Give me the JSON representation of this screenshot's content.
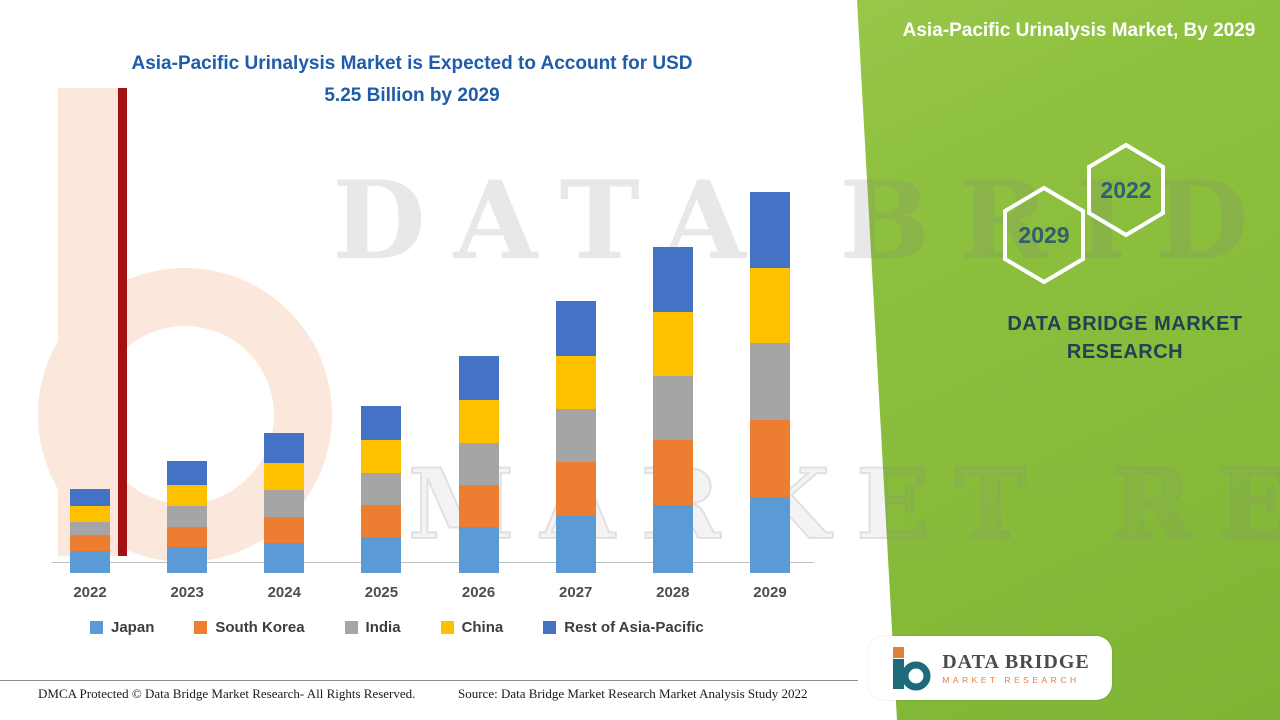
{
  "header": {
    "title_line1": "Asia-Pacific Urinalysis Market is Expected to Account for USD",
    "title_line2": "5.25 Billion by 2029"
  },
  "side_panel": {
    "title": "Asia-Pacific Urinalysis Market, By 2029",
    "hex_front_label": "2029",
    "hex_back_label": "2022",
    "brand_line1": "DATA BRIDGE MARKET",
    "brand_line2": "RESEARCH"
  },
  "watermark": {
    "line1": "DATA BRIDGE",
    "line2": "MARKET RESEARCH"
  },
  "logo_card": {
    "brand": "DATA BRIDGE",
    "sub": "MARKET RESEARCH"
  },
  "footer": {
    "left": "DMCA Protected © Data Bridge Market Research- All Rights Reserved.",
    "source": "Source: Data Bridge Market Research Market Analysis Study 2022"
  },
  "colors": {
    "title_blue": "#1f5ca9",
    "panel_green": "#8fc140",
    "japan": "#5B9BD5",
    "south_korea": "#ED7D31",
    "india": "#A5A5A5",
    "china": "#FFC000",
    "rest_of_asia_pacific": "#4472C4"
  },
  "chart_data": {
    "type": "bar",
    "stacked": true,
    "title": "Asia-Pacific Urinalysis Market is Expected to Account for USD 5.25 Billion by 2029",
    "xlabel": "",
    "ylabel": "",
    "y_axis_visible": false,
    "grid": false,
    "legend_position": "bottom",
    "units": "USD Billion",
    "categories": [
      "2022",
      "2023",
      "2024",
      "2025",
      "2026",
      "2027",
      "2028",
      "2029"
    ],
    "series": [
      {
        "name": "Japan",
        "color": "#5B9BD5",
        "values": [
          0.3,
          0.36,
          0.42,
          0.5,
          0.63,
          0.79,
          0.94,
          1.05
        ]
      },
      {
        "name": "South Korea",
        "color": "#ED7D31",
        "values": [
          0.22,
          0.28,
          0.36,
          0.44,
          0.58,
          0.74,
          0.9,
          1.06
        ]
      },
      {
        "name": "India",
        "color": "#A5A5A5",
        "values": [
          0.19,
          0.28,
          0.36,
          0.44,
          0.58,
          0.73,
          0.88,
          1.06
        ]
      },
      {
        "name": "China",
        "color": "#FFC000",
        "values": [
          0.22,
          0.3,
          0.38,
          0.45,
          0.6,
          0.74,
          0.88,
          1.03
        ]
      },
      {
        "name": "Rest of Asia-Pacific",
        "color": "#4472C4",
        "values": [
          0.23,
          0.32,
          0.41,
          0.47,
          0.61,
          0.75,
          0.9,
          1.05
        ]
      }
    ],
    "totals": [
      1.16,
      1.54,
      1.93,
      2.3,
      3.0,
      3.75,
      4.5,
      5.25
    ],
    "ylim": [
      0,
      5.5
    ]
  }
}
